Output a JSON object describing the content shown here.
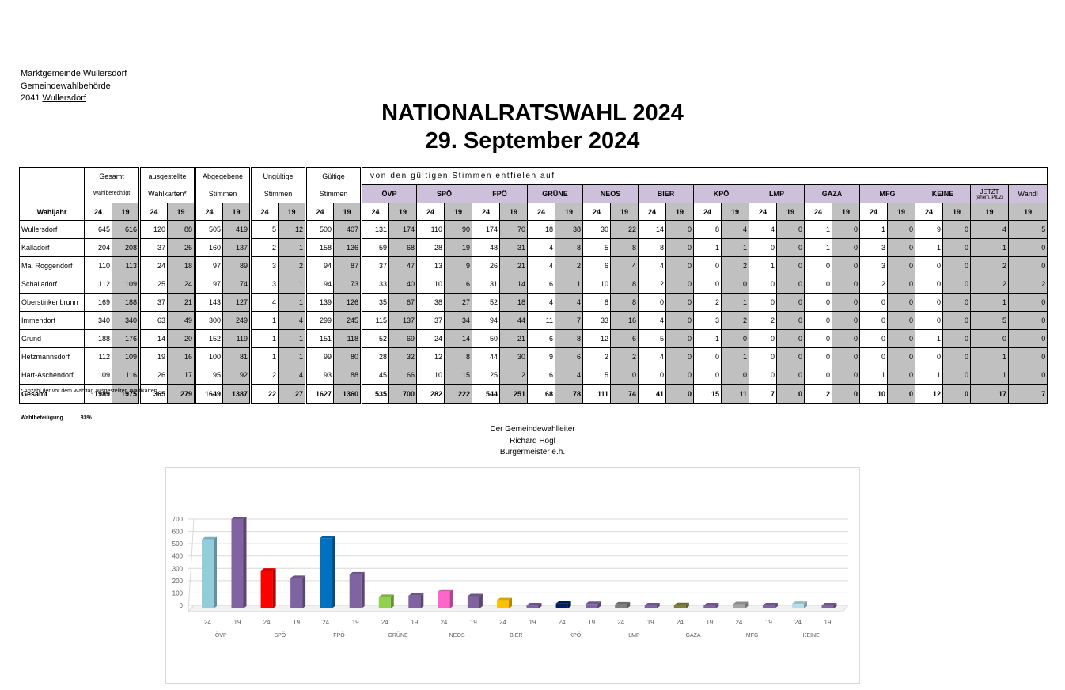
{
  "header": {
    "line1": "Marktgemeinde Wullersdorf",
    "line2": "Gemeindewahlbehörde",
    "line3_prefix": "2041 ",
    "line3_place": "Wullersdorf"
  },
  "title": {
    "line1": "NATIONALRATSWAHL 2024",
    "line2": "29. September 2024"
  },
  "table": {
    "groups": [
      {
        "top": "Gesamt",
        "bottom": "Wahlberechtigt"
      },
      {
        "top": "ausgestellte",
        "bottom": "Wahlkarten*"
      },
      {
        "top": "Abgegebene",
        "bottom": "Stimmen"
      },
      {
        "top": "Ungültige",
        "bottom": "Stimmen"
      },
      {
        "top": "Gültige",
        "bottom": "Stimmen"
      }
    ],
    "parties_caption": "von den gültigen Stimmen entfielen auf",
    "parties": [
      "ÖVP",
      "SPÖ",
      "FPÖ",
      "GRÜNE",
      "NEOS",
      "BIER",
      "KPÖ",
      "LMP",
      "GAZA",
      "MFG",
      "KEINE"
    ],
    "jetzt": {
      "label": "JETZT",
      "sub": "(ehem. PILZ)"
    },
    "wandl": "Wandl",
    "year_label": "Wahljahr",
    "y24": "24",
    "y19": "19",
    "rows": [
      {
        "name": "Wullersdorf",
        "v": [
          "645",
          "616",
          "120",
          "88",
          "505",
          "419",
          "5",
          "12",
          "500",
          "407",
          "131",
          "174",
          "110",
          "90",
          "174",
          "70",
          "18",
          "38",
          "30",
          "22",
          "14",
          "0",
          "8",
          "4",
          "4",
          "0",
          "1",
          "0",
          "1",
          "0",
          "9",
          "0",
          "4",
          "5"
        ]
      },
      {
        "name": "Kalladorf",
        "v": [
          "204",
          "208",
          "37",
          "26",
          "160",
          "137",
          "2",
          "1",
          "158",
          "136",
          "59",
          "68",
          "28",
          "19",
          "48",
          "31",
          "4",
          "8",
          "5",
          "8",
          "8",
          "0",
          "1",
          "1",
          "0",
          "0",
          "1",
          "0",
          "3",
          "0",
          "1",
          "0",
          "1",
          "0"
        ]
      },
      {
        "name": "Ma. Roggendorf",
        "v": [
          "110",
          "113",
          "24",
          "18",
          "97",
          "89",
          "3",
          "2",
          "94",
          "87",
          "37",
          "47",
          "13",
          "9",
          "26",
          "21",
          "4",
          "2",
          "6",
          "4",
          "4",
          "0",
          "0",
          "2",
          "1",
          "0",
          "0",
          "0",
          "3",
          "0",
          "0",
          "0",
          "2",
          "0"
        ]
      },
      {
        "name": "Schalladorf",
        "v": [
          "112",
          "109",
          "25",
          "24",
          "97",
          "74",
          "3",
          "1",
          "94",
          "73",
          "33",
          "40",
          "10",
          "6",
          "31",
          "14",
          "6",
          "1",
          "10",
          "8",
          "2",
          "0",
          "0",
          "0",
          "0",
          "0",
          "0",
          "0",
          "2",
          "0",
          "0",
          "0",
          "2",
          "2"
        ]
      },
      {
        "name": "Oberstinkenbrunn",
        "v": [
          "169",
          "188",
          "37",
          "21",
          "143",
          "127",
          "4",
          "1",
          "139",
          "126",
          "35",
          "67",
          "38",
          "27",
          "52",
          "18",
          "4",
          "4",
          "8",
          "8",
          "0",
          "0",
          "2",
          "1",
          "0",
          "0",
          "0",
          "0",
          "0",
          "0",
          "0",
          "0",
          "1",
          "0"
        ]
      },
      {
        "name": "Immendorf",
        "v": [
          "340",
          "340",
          "63",
          "49",
          "300",
          "249",
          "1",
          "4",
          "299",
          "245",
          "115",
          "137",
          "37",
          "34",
          "94",
          "44",
          "11",
          "7",
          "33",
          "16",
          "4",
          "0",
          "3",
          "2",
          "2",
          "0",
          "0",
          "0",
          "0",
          "0",
          "0",
          "0",
          "5",
          "0"
        ]
      },
      {
        "name": "Grund",
        "v": [
          "188",
          "176",
          "14",
          "20",
          "152",
          "119",
          "1",
          "1",
          "151",
          "118",
          "52",
          "69",
          "24",
          "14",
          "50",
          "21",
          "6",
          "8",
          "12",
          "6",
          "5",
          "0",
          "1",
          "0",
          "0",
          "0",
          "0",
          "0",
          "0",
          "0",
          "1",
          "0",
          "0",
          "0"
        ]
      },
      {
        "name": "Hetzmannsdorf",
        "v": [
          "112",
          "109",
          "19",
          "16",
          "100",
          "81",
          "1",
          "1",
          "99",
          "80",
          "28",
          "32",
          "12",
          "8",
          "44",
          "30",
          "9",
          "6",
          "2",
          "2",
          "4",
          "0",
          "0",
          "1",
          "0",
          "0",
          "0",
          "0",
          "0",
          "0",
          "0",
          "0",
          "1",
          "0"
        ]
      },
      {
        "name": "Hart-Aschendorf",
        "v": [
          "109",
          "116",
          "26",
          "17",
          "95",
          "92",
          "2",
          "4",
          "93",
          "88",
          "45",
          "66",
          "10",
          "15",
          "25",
          "2",
          "6",
          "4",
          "5",
          "0",
          "0",
          "0",
          "0",
          "0",
          "0",
          "0",
          "0",
          "0",
          "1",
          "0",
          "1",
          "0",
          "1",
          "0"
        ]
      }
    ],
    "total": {
      "name": "Gesamt",
      "v": [
        "1989",
        "1975",
        "365",
        "279",
        "1649",
        "1387",
        "22",
        "27",
        "1627",
        "1360",
        "535",
        "700",
        "282",
        "222",
        "544",
        "251",
        "68",
        "78",
        "111",
        "74",
        "41",
        "0",
        "15",
        "11",
        "7",
        "0",
        "2",
        "0",
        "10",
        "0",
        "12",
        "0",
        "17",
        "7"
      ]
    }
  },
  "footnote": "* Anzahl der vor dem Wahltag ausgestellten Wahlkarten",
  "turnout": {
    "label": "Wahlbeteiligung",
    "value": "83%"
  },
  "signature": {
    "line1": "Der Gemeindewahlleiter",
    "line2": "Richard Hogl",
    "line3": "Bürgermeister e.h."
  },
  "chart_data": {
    "type": "bar",
    "categories": [
      "ÖVP",
      "SPÖ",
      "FPÖ",
      "GRÜNE",
      "NEOS",
      "BIER",
      "KPÖ",
      "LMP",
      "GAZA",
      "MFG",
      "KEINE"
    ],
    "sub_labels": [
      "24",
      "19"
    ],
    "series": [
      {
        "values": [
          535,
          282,
          544,
          68,
          111,
          41,
          15,
          7,
          2,
          10,
          12
        ]
      },
      {
        "values": [
          700,
          222,
          251,
          78,
          74,
          0,
          11,
          0,
          0,
          0,
          0
        ]
      }
    ],
    "colors_24": [
      "#92cddc",
      "#ff0000",
      "#0070c0",
      "#92d050",
      "#ff66cc",
      "#ffc000",
      "#002060",
      "#7f7f7f",
      "#7f7f3f",
      "#a6a6a6",
      "#b7dee8"
    ],
    "color_19": "#8064a2",
    "y_ticks": [
      "0",
      "100",
      "200",
      "300",
      "400",
      "500",
      "600",
      "700"
    ],
    "ylim": [
      0,
      700
    ],
    "grid": true,
    "legend": "none"
  }
}
